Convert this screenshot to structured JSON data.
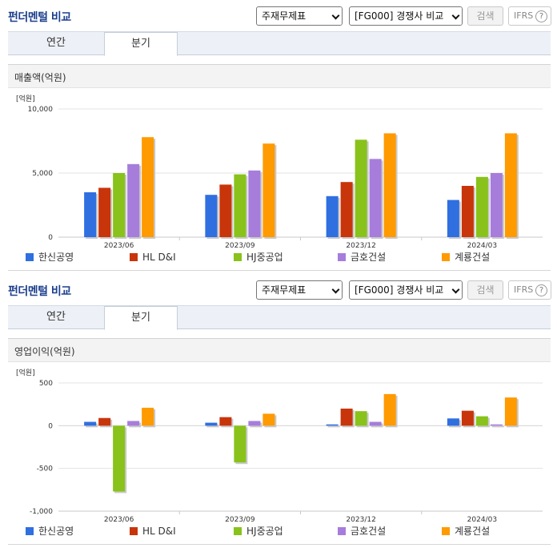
{
  "panels": [
    {
      "title": "펀더멘털 비교",
      "select1": "주재무제표",
      "select2": "[FG000] 경쟁사 비교",
      "search_label": "검색",
      "ifrs_label": "IFRS",
      "help_label": "?",
      "tabs": [
        {
          "label": "연간"
        },
        {
          "label": "분기"
        }
      ],
      "active_tab": 1,
      "section_title": "매출액(억원)"
    },
    {
      "title": "펀더멘털 비교",
      "select1": "주재무제표",
      "select2": "[FG000] 경쟁사 비교",
      "search_label": "검색",
      "ifrs_label": "IFRS",
      "help_label": "?",
      "tabs": [
        {
          "label": "연간"
        },
        {
          "label": "분기"
        }
      ],
      "active_tab": 1,
      "section_title": "영업이익(억원)"
    }
  ],
  "colors": [
    "#2f6fe0",
    "#c8350a",
    "#88c21b",
    "#a67ddb",
    "#ff9a00"
  ],
  "chart_data": [
    {
      "type": "bar",
      "unit_label": "[억원]",
      "categories": [
        "2023/06",
        "2023/09",
        "2023/12",
        "2024/03"
      ],
      "ylim": [
        0,
        10000
      ],
      "yticks": [
        0,
        5000,
        10000
      ],
      "ytick_labels": [
        "0",
        "5,000",
        "10,000"
      ],
      "grid": true,
      "legend": "bottom",
      "series": [
        {
          "name": "한신공영",
          "values": [
            3500,
            3300,
            3200,
            2900
          ]
        },
        {
          "name": "HL D&I",
          "values": [
            3850,
            4100,
            4300,
            4000
          ]
        },
        {
          "name": "HJ중공업",
          "values": [
            5000,
            4900,
            7600,
            4700
          ]
        },
        {
          "name": "금호건설",
          "values": [
            5700,
            5200,
            6100,
            5000
          ]
        },
        {
          "name": "계룡건설",
          "values": [
            7800,
            7300,
            8100,
            8100
          ]
        }
      ]
    },
    {
      "type": "bar",
      "unit_label": "[억원]",
      "categories": [
        "2023/06",
        "2023/09",
        "2023/12",
        "2024/03"
      ],
      "ylim": [
        -1000,
        500
      ],
      "yticks": [
        -1000,
        -500,
        0,
        500
      ],
      "ytick_labels": [
        "-1,000",
        "-500",
        "0",
        "500"
      ],
      "grid": true,
      "legend": "bottom",
      "series": [
        {
          "name": "한신공영",
          "values": [
            45,
            35,
            15,
            85
          ]
        },
        {
          "name": "HL D&I",
          "values": [
            90,
            100,
            200,
            175
          ]
        },
        {
          "name": "HJ중공업",
          "values": [
            -770,
            -430,
            170,
            110
          ]
        },
        {
          "name": "금호건설",
          "values": [
            55,
            55,
            45,
            15
          ]
        },
        {
          "name": "계룡건설",
          "values": [
            210,
            140,
            370,
            330
          ]
        }
      ]
    }
  ]
}
